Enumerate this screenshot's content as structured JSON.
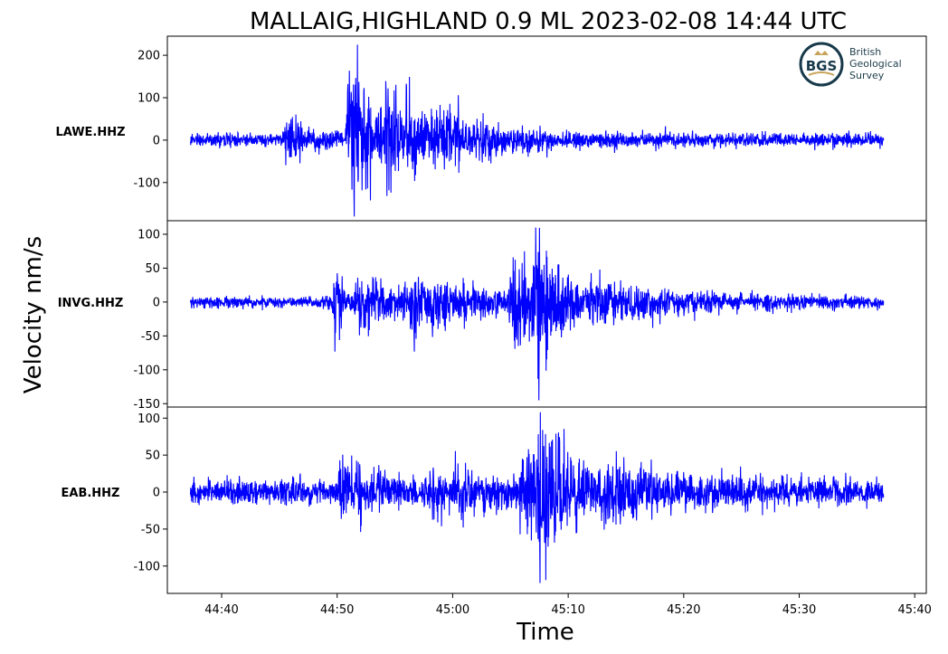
{
  "chart_data": {
    "type": "line",
    "title": "MALLAIG,HIGHLAND 0.9 ML   2023-02-08 14:44 UTC",
    "xlabel": "Time",
    "ylabel": "Velocity nm/s",
    "x_range_seconds": [
      0,
      3600
    ],
    "x_axis": {
      "ticks": [
        {
          "label": "44:40",
          "offset_s": 20
        },
        {
          "label": "44:50",
          "offset_s": 30
        },
        {
          "label": "45:00",
          "offset_s": 40
        },
        {
          "label": "45:10",
          "offset_s": 50
        },
        {
          "label": "45:20",
          "offset_s": 60
        },
        {
          "label": "45:30",
          "offset_s": 70
        },
        {
          "label": "45:40",
          "offset_s": 80
        }
      ],
      "range_s": [
        15.3,
        81.0
      ],
      "trace_start_s": 17.3,
      "trace_end_s": 77.3
    },
    "color": "#0000ff",
    "panels": [
      {
        "station": "LAWE.HHZ",
        "ylim": [
          -190,
          245
        ],
        "yticks": [
          {
            "label": "200",
            "value": 200
          },
          {
            "label": "100",
            "value": 100
          },
          {
            "label": "0",
            "value": 0
          },
          {
            "label": "-100",
            "value": -100
          }
        ],
        "noise": 9,
        "bursts": [
          {
            "t": 25.5,
            "amp": 25,
            "width": 2.0
          },
          {
            "t": 31.0,
            "amp": 115,
            "width": 1.0
          },
          {
            "t": 31.6,
            "amp": 60,
            "width": 2.5
          },
          {
            "t": 34.3,
            "amp": 95,
            "width": 0.8
          },
          {
            "t": 36.0,
            "amp": 45,
            "width": 3.0
          },
          {
            "t": 39.0,
            "amp": 20,
            "width": 6.0
          }
        ],
        "peak_max": 225,
        "peak_min": -180
      },
      {
        "station": "INVG.HHZ",
        "ylim": [
          -155,
          120
        ],
        "yticks": [
          {
            "label": "100",
            "value": 100
          },
          {
            "label": "50",
            "value": 50
          },
          {
            "label": "0",
            "value": 0
          },
          {
            "label": "-50",
            "value": -50
          },
          {
            "label": "-100",
            "value": -100
          },
          {
            "label": "-150",
            "value": -150
          }
        ],
        "noise": 5,
        "bursts": [
          {
            "t": 29.8,
            "amp": 45,
            "width": 0.6
          },
          {
            "t": 31.5,
            "amp": 20,
            "width": 6.0
          },
          {
            "t": 36.5,
            "amp": 14,
            "width": 6.0
          },
          {
            "t": 45.0,
            "amp": 48,
            "width": 1.8
          },
          {
            "t": 47.0,
            "amp": 40,
            "width": 3.0
          },
          {
            "t": 52.0,
            "amp": 12,
            "width": 8.0
          }
        ],
        "peak_max": 110,
        "peak_min": -145
      },
      {
        "station": "EAB.HHZ",
        "ylim": [
          -137,
          115
        ],
        "yticks": [
          {
            "label": "100",
            "value": 100
          },
          {
            "label": "50",
            "value": 50
          },
          {
            "label": "0",
            "value": 0
          },
          {
            "label": "-50",
            "value": -50
          },
          {
            "label": "-100",
            "value": -100
          }
        ],
        "noise": 10,
        "bursts": [
          {
            "t": 30.2,
            "amp": 20,
            "width": 3.0
          },
          {
            "t": 38.0,
            "amp": 12,
            "width": 8.0
          },
          {
            "t": 46.0,
            "amp": 48,
            "width": 1.5
          },
          {
            "t": 47.5,
            "amp": 35,
            "width": 3.0
          },
          {
            "t": 53.0,
            "amp": 12,
            "width": 9.0
          }
        ],
        "peak_max": 108,
        "peak_min": -123
      }
    ]
  },
  "logo": {
    "monogram": "BGS",
    "line1": "British",
    "line2": "Geological",
    "line3": "Survey"
  }
}
